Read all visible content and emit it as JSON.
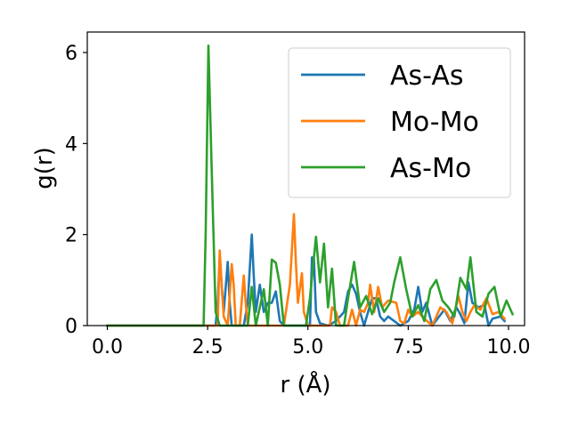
{
  "chart_data": {
    "type": "line",
    "xlabel": "r (Å)",
    "ylabel": "g(r)",
    "xlim": [
      -0.5,
      10.4
    ],
    "ylim": [
      0,
      6.45
    ],
    "xticks": [
      0.0,
      2.5,
      5.0,
      7.5,
      10.0
    ],
    "xtick_labels": [
      "0.0",
      "2.5",
      "5.0",
      "7.5",
      "10.0"
    ],
    "yticks": [
      0,
      2,
      4,
      6
    ],
    "ytick_labels": [
      "0",
      "2",
      "4",
      "6"
    ],
    "grid": false,
    "legend_position": "top-right",
    "series": [
      {
        "name": "As-As",
        "color": "#1f77b4",
        "points": [
          [
            0.0,
            0
          ],
          [
            2.7,
            0
          ],
          [
            2.75,
            0.5
          ],
          [
            2.8,
            1.5
          ],
          [
            2.85,
            0.9
          ],
          [
            2.9,
            0.3
          ],
          [
            3.0,
            1.4
          ],
          [
            3.05,
            0.5
          ],
          [
            3.1,
            0
          ],
          [
            3.4,
            0
          ],
          [
            3.5,
            0.5
          ],
          [
            3.6,
            2.0
          ],
          [
            3.65,
            1.1
          ],
          [
            3.7,
            0.3
          ],
          [
            3.8,
            0.9
          ],
          [
            3.9,
            0.3
          ],
          [
            4.0,
            0.5
          ],
          [
            4.1,
            0.5
          ],
          [
            4.2,
            0.75
          ],
          [
            4.3,
            0.1
          ],
          [
            4.4,
            0
          ],
          [
            5.05,
            0
          ],
          [
            5.1,
            1.5
          ],
          [
            5.15,
            1.45
          ],
          [
            5.2,
            0.3
          ],
          [
            5.3,
            0.05
          ],
          [
            5.5,
            0
          ],
          [
            5.7,
            0.1
          ],
          [
            5.9,
            0.3
          ],
          [
            6.0,
            0.75
          ],
          [
            6.1,
            0.9
          ],
          [
            6.2,
            0.7
          ],
          [
            6.3,
            0.3
          ],
          [
            6.4,
            0
          ],
          [
            6.6,
            0.6
          ],
          [
            6.7,
            0.6
          ],
          [
            6.8,
            0.2
          ],
          [
            6.9,
            0.1
          ],
          [
            7.0,
            0.2
          ],
          [
            7.3,
            0
          ],
          [
            7.5,
            0.1
          ],
          [
            7.65,
            0.35
          ],
          [
            7.75,
            0.85
          ],
          [
            7.85,
            0.3
          ],
          [
            7.95,
            0.5
          ],
          [
            8.1,
            0
          ],
          [
            8.4,
            0.35
          ],
          [
            8.55,
            0.1
          ],
          [
            8.7,
            0.4
          ],
          [
            8.8,
            0.25
          ],
          [
            8.9,
            0.05
          ],
          [
            9.0,
            0.95
          ],
          [
            9.1,
            0.5
          ],
          [
            9.25,
            0.4
          ],
          [
            9.4,
            0.45
          ],
          [
            9.5,
            0
          ],
          [
            9.6,
            0.15
          ],
          [
            9.8,
            0.2
          ],
          [
            9.9,
            0.1
          ]
        ]
      },
      {
        "name": "Mo-Mo",
        "color": "#ff7f0e",
        "points": [
          [
            0.0,
            0
          ],
          [
            2.75,
            0
          ],
          [
            2.8,
            1.65
          ],
          [
            2.85,
            0.9
          ],
          [
            2.9,
            0.2
          ],
          [
            3.0,
            0
          ],
          [
            3.1,
            1.35
          ],
          [
            3.15,
            0.9
          ],
          [
            3.2,
            0
          ],
          [
            3.3,
            0
          ],
          [
            3.4,
            1.1
          ],
          [
            3.45,
            0.5
          ],
          [
            3.5,
            0
          ],
          [
            4.4,
            0
          ],
          [
            4.55,
            0.9
          ],
          [
            4.65,
            2.45
          ],
          [
            4.7,
            1.4
          ],
          [
            4.75,
            0.5
          ],
          [
            4.85,
            1.15
          ],
          [
            4.9,
            0.3
          ],
          [
            5.0,
            0
          ],
          [
            5.55,
            0
          ],
          [
            5.6,
            0.4
          ],
          [
            5.7,
            0.3
          ],
          [
            5.8,
            0
          ],
          [
            6.0,
            0
          ],
          [
            6.1,
            0.35
          ],
          [
            6.2,
            0
          ],
          [
            6.3,
            0.35
          ],
          [
            6.4,
            0.3
          ],
          [
            6.5,
            0.5
          ],
          [
            6.55,
            0.9
          ],
          [
            6.65,
            0.3
          ],
          [
            6.75,
            0.85
          ],
          [
            6.85,
            0.4
          ],
          [
            7.0,
            0.55
          ],
          [
            7.2,
            0.5
          ],
          [
            7.3,
            0.1
          ],
          [
            7.4,
            0.05
          ],
          [
            7.5,
            0.35
          ],
          [
            7.6,
            0.2
          ],
          [
            7.75,
            0.3
          ],
          [
            7.9,
            0.15
          ],
          [
            8.1,
            0
          ],
          [
            8.3,
            0.4
          ],
          [
            8.45,
            0.3
          ],
          [
            8.6,
            0.05
          ],
          [
            8.75,
            0.65
          ],
          [
            8.85,
            0.3
          ],
          [
            8.95,
            0.1
          ],
          [
            9.05,
            0.3
          ],
          [
            9.15,
            0.45
          ],
          [
            9.3,
            0.35
          ],
          [
            9.45,
            0.6
          ],
          [
            9.6,
            0.25
          ],
          [
            9.75,
            0.3
          ],
          [
            9.9,
            0.15
          ]
        ]
      },
      {
        "name": "As-Mo",
        "color": "#2ca02c",
        "points": [
          [
            0.0,
            0
          ],
          [
            2.4,
            0
          ],
          [
            2.45,
            2.0
          ],
          [
            2.52,
            6.15
          ],
          [
            2.6,
            3.5
          ],
          [
            2.7,
            0.3
          ],
          [
            2.8,
            0
          ],
          [
            3.5,
            0
          ],
          [
            3.6,
            0.85
          ],
          [
            3.7,
            0
          ],
          [
            3.9,
            0.8
          ],
          [
            4.0,
            0
          ],
          [
            4.1,
            1.45
          ],
          [
            4.2,
            1.38
          ],
          [
            4.3,
            0.9
          ],
          [
            4.4,
            0
          ],
          [
            4.95,
            0
          ],
          [
            5.05,
            0.6
          ],
          [
            5.2,
            1.95
          ],
          [
            5.3,
            0.95
          ],
          [
            5.4,
            1.8
          ],
          [
            5.5,
            0.4
          ],
          [
            5.6,
            1.25
          ],
          [
            5.7,
            0
          ],
          [
            5.9,
            0
          ],
          [
            6.0,
            0.6
          ],
          [
            6.15,
            1.4
          ],
          [
            6.3,
            0.4
          ],
          [
            6.45,
            0.65
          ],
          [
            6.6,
            0.25
          ],
          [
            6.75,
            0.6
          ],
          [
            6.9,
            0.3
          ],
          [
            7.05,
            0.5
          ],
          [
            7.15,
            0.95
          ],
          [
            7.3,
            1.5
          ],
          [
            7.45,
            0.8
          ],
          [
            7.6,
            0.2
          ],
          [
            7.75,
            0.45
          ],
          [
            7.9,
            0.1
          ],
          [
            8.05,
            0.8
          ],
          [
            8.2,
            1.0
          ],
          [
            8.35,
            0.55
          ],
          [
            8.5,
            0.4
          ],
          [
            8.65,
            0.2
          ],
          [
            8.8,
            1.05
          ],
          [
            8.95,
            0.8
          ],
          [
            9.05,
            1.5
          ],
          [
            9.2,
            0.3
          ],
          [
            9.35,
            0.2
          ],
          [
            9.5,
            0.7
          ],
          [
            9.65,
            0.85
          ],
          [
            9.8,
            0.2
          ],
          [
            9.95,
            0.55
          ],
          [
            10.1,
            0.25
          ]
        ]
      }
    ]
  }
}
